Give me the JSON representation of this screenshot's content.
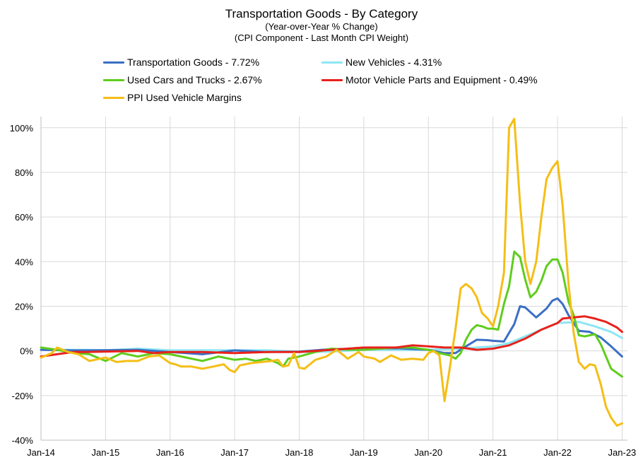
{
  "chart_data": {
    "type": "line",
    "title": "Transportation Goods - By Category",
    "subtitle_1": "(Year-over-Year % Change)",
    "subtitle_2": "(CPI Component - Last Month CPI Weight)",
    "xlabel": "",
    "ylabel": "",
    "ylim": [
      -40,
      105
    ],
    "y_ticks": [
      "100%",
      "80%",
      "60%",
      "40%",
      "20%",
      "0%",
      "-20%",
      "-40%"
    ],
    "x_ticks": [
      "Jan-14",
      "Jan-15",
      "Jan-16",
      "Jan-17",
      "Jan-18",
      "Jan-19",
      "Jan-20",
      "Jan-21",
      "Jan-22",
      "Jan-23"
    ],
    "x_start": "2014-01",
    "grid": true,
    "legend_position": "top",
    "series": [
      {
        "name": "Transportation Goods - 7.72%",
        "color": "#3a6fc4",
        "points": [
          [
            2014.0,
            0.5
          ],
          [
            2014.5,
            0.2
          ],
          [
            2015.0,
            0.3
          ],
          [
            2015.5,
            0.5
          ],
          [
            2016.0,
            -0.5
          ],
          [
            2016.5,
            -1.5
          ],
          [
            2017.0,
            0.2
          ],
          [
            2017.5,
            -0.5
          ],
          [
            2018.0,
            -0.3
          ],
          [
            2018.5,
            0.8
          ],
          [
            2019.0,
            1.0
          ],
          [
            2019.5,
            1.2
          ],
          [
            2020.0,
            0.5
          ],
          [
            2020.25,
            -1.0
          ],
          [
            2020.42,
            -1.0
          ],
          [
            2020.58,
            2.0
          ],
          [
            2020.75,
            5.0
          ],
          [
            2020.92,
            4.8
          ],
          [
            2021.0,
            4.5
          ],
          [
            2021.17,
            4.2
          ],
          [
            2021.33,
            12.0
          ],
          [
            2021.42,
            20.0
          ],
          [
            2021.5,
            19.5
          ],
          [
            2021.67,
            15.0
          ],
          [
            2021.83,
            19.0
          ],
          [
            2021.92,
            22.5
          ],
          [
            2022.0,
            23.5
          ],
          [
            2022.08,
            21.0
          ],
          [
            2022.17,
            16.0
          ],
          [
            2022.33,
            9.0
          ],
          [
            2022.5,
            8.5
          ],
          [
            2022.67,
            6.0
          ],
          [
            2022.83,
            2.0
          ],
          [
            2023.0,
            -2.5
          ]
        ]
      },
      {
        "name": "New Vehicles - 4.31%",
        "color": "#8ee6f4",
        "points": [
          [
            2014.0,
            0.5
          ],
          [
            2014.5,
            0.5
          ],
          [
            2015.0,
            0.3
          ],
          [
            2015.5,
            1.0
          ],
          [
            2016.0,
            0.3
          ],
          [
            2016.5,
            0.3
          ],
          [
            2017.0,
            0.3
          ],
          [
            2017.5,
            0.3
          ],
          [
            2018.0,
            -0.5
          ],
          [
            2018.5,
            -0.3
          ],
          [
            2019.0,
            0.5
          ],
          [
            2019.5,
            0.5
          ],
          [
            2020.0,
            0.5
          ],
          [
            2020.5,
            1.0
          ],
          [
            2021.0,
            2.0
          ],
          [
            2021.25,
            3.5
          ],
          [
            2021.5,
            6.5
          ],
          [
            2021.75,
            9.5
          ],
          [
            2022.0,
            12.5
          ],
          [
            2022.33,
            13.0
          ],
          [
            2022.58,
            11.0
          ],
          [
            2022.83,
            8.5
          ],
          [
            2023.0,
            5.8
          ]
        ]
      },
      {
        "name": "Used Cars and Trucks - 2.67%",
        "color": "#5fcd1c",
        "points": [
          [
            2014.0,
            1.5
          ],
          [
            2014.25,
            0.5
          ],
          [
            2014.5,
            -1.0
          ],
          [
            2014.75,
            -1.5
          ],
          [
            2015.0,
            -4.5
          ],
          [
            2015.25,
            -1.0
          ],
          [
            2015.5,
            -2.5
          ],
          [
            2015.75,
            -1.0
          ],
          [
            2016.0,
            -1.5
          ],
          [
            2016.25,
            -3.0
          ],
          [
            2016.5,
            -4.5
          ],
          [
            2016.75,
            -2.5
          ],
          [
            2017.0,
            -4.0
          ],
          [
            2017.17,
            -3.5
          ],
          [
            2017.33,
            -4.5
          ],
          [
            2017.5,
            -3.5
          ],
          [
            2017.67,
            -5.5
          ],
          [
            2017.75,
            -7.0
          ],
          [
            2017.83,
            -3.5
          ],
          [
            2018.0,
            -2.5
          ],
          [
            2018.25,
            -0.5
          ],
          [
            2018.5,
            1.0
          ],
          [
            2018.75,
            0.5
          ],
          [
            2019.0,
            0.5
          ],
          [
            2019.25,
            1.0
          ],
          [
            2019.5,
            1.5
          ],
          [
            2019.75,
            1.5
          ],
          [
            2020.0,
            0.5
          ],
          [
            2020.17,
            -1.0
          ],
          [
            2020.33,
            -2.0
          ],
          [
            2020.42,
            -3.5
          ],
          [
            2020.5,
            -1.0
          ],
          [
            2020.58,
            5.0
          ],
          [
            2020.67,
            9.5
          ],
          [
            2020.75,
            11.5
          ],
          [
            2020.83,
            11.0
          ],
          [
            2020.92,
            10.0
          ],
          [
            2021.0,
            10.0
          ],
          [
            2021.08,
            9.5
          ],
          [
            2021.17,
            21.0
          ],
          [
            2021.25,
            29.0
          ],
          [
            2021.33,
            44.5
          ],
          [
            2021.42,
            42.0
          ],
          [
            2021.5,
            32.0
          ],
          [
            2021.58,
            24.0
          ],
          [
            2021.67,
            26.5
          ],
          [
            2021.75,
            31.5
          ],
          [
            2021.83,
            38.0
          ],
          [
            2021.92,
            41.0
          ],
          [
            2022.0,
            41.0
          ],
          [
            2022.08,
            35.0
          ],
          [
            2022.17,
            22.0
          ],
          [
            2022.25,
            16.0
          ],
          [
            2022.33,
            7.0
          ],
          [
            2022.42,
            6.5
          ],
          [
            2022.58,
            7.5
          ],
          [
            2022.67,
            3.0
          ],
          [
            2022.83,
            -8.0
          ],
          [
            2023.0,
            -11.5
          ]
        ]
      },
      {
        "name": "Motor Vehicle Parts and Equipment - 0.49%",
        "color": "#e8211b",
        "points": [
          [
            2014.0,
            -2.5
          ],
          [
            2014.25,
            -1.5
          ],
          [
            2014.5,
            -0.5
          ],
          [
            2014.75,
            -0.5
          ],
          [
            2015.0,
            -0.3
          ],
          [
            2015.5,
            0.0
          ],
          [
            2015.75,
            -1.0
          ],
          [
            2016.0,
            -0.5
          ],
          [
            2016.5,
            -0.5
          ],
          [
            2017.0,
            -1.0
          ],
          [
            2017.5,
            -0.5
          ],
          [
            2018.0,
            -0.5
          ],
          [
            2018.5,
            0.5
          ],
          [
            2019.0,
            1.5
          ],
          [
            2019.5,
            1.5
          ],
          [
            2019.75,
            2.5
          ],
          [
            2020.0,
            2.0
          ],
          [
            2020.25,
            1.5
          ],
          [
            2020.5,
            1.5
          ],
          [
            2020.75,
            0.5
          ],
          [
            2021.0,
            1.0
          ],
          [
            2021.25,
            2.5
          ],
          [
            2021.5,
            5.5
          ],
          [
            2021.75,
            9.5
          ],
          [
            2022.0,
            12.5
          ],
          [
            2022.08,
            14.5
          ],
          [
            2022.25,
            15.0
          ],
          [
            2022.42,
            15.5
          ],
          [
            2022.58,
            14.5
          ],
          [
            2022.75,
            13.0
          ],
          [
            2022.92,
            10.5
          ],
          [
            2023.0,
            8.5
          ]
        ]
      },
      {
        "name": "PPI Used Vehicle Margins",
        "color": "#f5be16",
        "points": [
          [
            2014.0,
            -3.0
          ],
          [
            2014.17,
            -1.0
          ],
          [
            2014.25,
            1.5
          ],
          [
            2014.42,
            -0.5
          ],
          [
            2014.58,
            -1.5
          ],
          [
            2014.75,
            -4.5
          ],
          [
            2015.0,
            -3.0
          ],
          [
            2015.17,
            -5.0
          ],
          [
            2015.33,
            -4.5
          ],
          [
            2015.5,
            -4.5
          ],
          [
            2015.67,
            -2.5
          ],
          [
            2015.83,
            -2.0
          ],
          [
            2016.0,
            -5.5
          ],
          [
            2016.08,
            -6.0
          ],
          [
            2016.17,
            -7.0
          ],
          [
            2016.33,
            -7.0
          ],
          [
            2016.5,
            -8.0
          ],
          [
            2016.67,
            -7.0
          ],
          [
            2016.83,
            -6.0
          ],
          [
            2016.92,
            -8.5
          ],
          [
            2017.0,
            -9.5
          ],
          [
            2017.08,
            -6.5
          ],
          [
            2017.25,
            -5.5
          ],
          [
            2017.42,
            -5.0
          ],
          [
            2017.58,
            -4.5
          ],
          [
            2017.67,
            -4.0
          ],
          [
            2017.75,
            -7.0
          ],
          [
            2017.83,
            -6.5
          ],
          [
            2017.92,
            -1.0
          ],
          [
            2018.0,
            -7.5
          ],
          [
            2018.08,
            -8.0
          ],
          [
            2018.25,
            -4.0
          ],
          [
            2018.42,
            -2.5
          ],
          [
            2018.58,
            0.5
          ],
          [
            2018.75,
            -3.5
          ],
          [
            2018.92,
            -0.5
          ],
          [
            2019.0,
            -2.5
          ],
          [
            2019.17,
            -3.5
          ],
          [
            2019.25,
            -5.0
          ],
          [
            2019.42,
            -2.0
          ],
          [
            2019.58,
            -4.0
          ],
          [
            2019.75,
            -3.5
          ],
          [
            2019.92,
            -4.0
          ],
          [
            2020.0,
            -1.0
          ],
          [
            2020.08,
            0.0
          ],
          [
            2020.17,
            -2.0
          ],
          [
            2020.25,
            -22.5
          ],
          [
            2020.33,
            -8.0
          ],
          [
            2020.42,
            10.0
          ],
          [
            2020.5,
            28.0
          ],
          [
            2020.58,
            30.0
          ],
          [
            2020.67,
            28.0
          ],
          [
            2020.75,
            24.0
          ],
          [
            2020.83,
            17.0
          ],
          [
            2020.92,
            14.5
          ],
          [
            2021.0,
            11.0
          ],
          [
            2021.08,
            20.0
          ],
          [
            2021.17,
            35.0
          ],
          [
            2021.25,
            100.0
          ],
          [
            2021.33,
            104.0
          ],
          [
            2021.42,
            66.0
          ],
          [
            2021.5,
            40.0
          ],
          [
            2021.58,
            30.0
          ],
          [
            2021.67,
            40.0
          ],
          [
            2021.75,
            60.0
          ],
          [
            2021.83,
            77.0
          ],
          [
            2021.92,
            82.0
          ],
          [
            2022.0,
            85.0
          ],
          [
            2022.08,
            65.0
          ],
          [
            2022.17,
            30.0
          ],
          [
            2022.25,
            8.0
          ],
          [
            2022.33,
            -5.0
          ],
          [
            2022.42,
            -8.0
          ],
          [
            2022.5,
            -6.0
          ],
          [
            2022.58,
            -6.5
          ],
          [
            2022.67,
            -15.0
          ],
          [
            2022.75,
            -25.0
          ],
          [
            2022.83,
            -30.0
          ],
          [
            2022.92,
            -33.5
          ],
          [
            2023.0,
            -32.5
          ]
        ]
      }
    ]
  }
}
